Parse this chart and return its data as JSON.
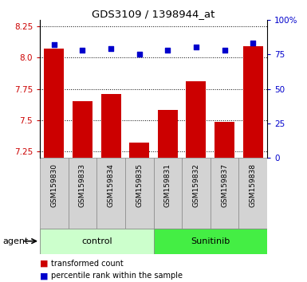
{
  "title": "GDS3109 / 1398944_at",
  "categories": [
    "GSM159830",
    "GSM159833",
    "GSM159834",
    "GSM159835",
    "GSM159831",
    "GSM159832",
    "GSM159837",
    "GSM159838"
  ],
  "transformed_counts": [
    8.07,
    7.65,
    7.71,
    7.32,
    7.58,
    7.81,
    7.49,
    8.09
  ],
  "percentile_ranks": [
    82,
    78,
    79,
    75,
    78,
    80,
    78,
    83
  ],
  "groups": [
    "control",
    "control",
    "control",
    "control",
    "Sunitinib",
    "Sunitinib",
    "Sunitinib",
    "Sunitinib"
  ],
  "ylim_left": [
    7.2,
    8.3
  ],
  "ylim_right": [
    0,
    100
  ],
  "yticks_left": [
    7.25,
    7.5,
    7.75,
    8.0,
    8.25
  ],
  "yticks_right": [
    0,
    25,
    50,
    75,
    100
  ],
  "bar_color": "#cc0000",
  "dot_color": "#0000cc",
  "control_color": "#ccffcc",
  "sunitinib_color": "#44ee44",
  "label_color_left": "#cc0000",
  "label_color_right": "#0000cc",
  "bar_width": 0.7,
  "dot_size": 25,
  "fig_width": 3.85,
  "fig_height": 3.54,
  "dpi": 100
}
